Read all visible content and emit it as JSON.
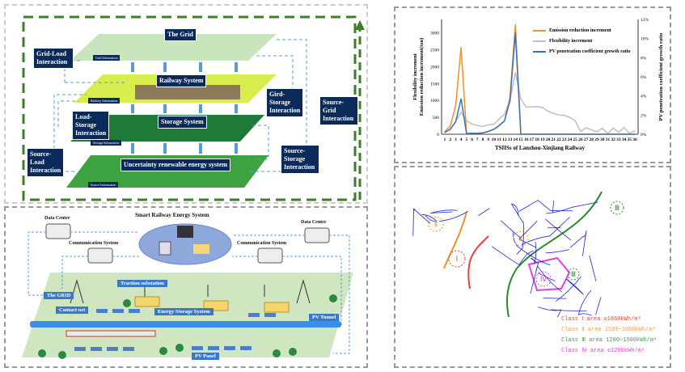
{
  "framework": {
    "layers": [
      "The Grid",
      "Railway System",
      "Storage System",
      "Uncertainty renewable energy system"
    ],
    "info_tags": [
      "Grid Information",
      "Railway Information",
      "Storage Information",
      "Source Information"
    ],
    "interactions": [
      "Grid-Load Interaction",
      "Load-Storage Interaction",
      "Source-Load Interaction",
      "Gird-Storage Interaction",
      "Source-Grid Interaction",
      "Source-Storage Interaction"
    ],
    "colors": {
      "border": "#3e7d2a",
      "label_bg": "#0b2a5c",
      "arrow": "#5b9bd5"
    }
  },
  "smart_system": {
    "title": "Smart Railway Energy System",
    "data_center_left": "Data Center",
    "data_center_right": "Data Center",
    "comm_left": "Communication System",
    "comm_right": "Communication System",
    "labels": [
      "The GRID",
      "Traction substation",
      "Contact net",
      "Energy Storage System",
      "PV Tunnel",
      "PV Panel"
    ]
  },
  "chart_data": {
    "type": "line",
    "categories": [
      "1",
      "2",
      "3",
      "4",
      "5",
      "6",
      "7",
      "8",
      "9",
      "10",
      "11",
      "12",
      "13",
      "14",
      "15",
      "16",
      "17",
      "18",
      "19",
      "20",
      "21",
      "22",
      "23",
      "24",
      "25",
      "26",
      "27",
      "28",
      "29",
      "30",
      "31",
      "32",
      "33",
      "34",
      "35",
      "36"
    ],
    "xlabel": "TSIISs of Lanzhou-Xinjiang Railway",
    "ylabel": "Flexibility increment\nEmission reduction increment(ton)",
    "ylabel_lines": [
      "Flexibility increment",
      "Emission reduction increment(ton)"
    ],
    "y2label": "PV penetration coefficient growth ratio",
    "ylim": [
      0,
      3400
    ],
    "yticks": [
      0,
      500,
      1000,
      1500,
      2000,
      2500,
      3000
    ],
    "y2lim": [
      0,
      12
    ],
    "y2ticks": [
      "0%",
      "2%",
      "4%",
      "6%",
      "8%",
      "10%",
      "12%"
    ],
    "legend": "top-right",
    "series": [
      {
        "name": "Emission reduction increment",
        "axis": "left",
        "color": "#f28e2b",
        "values": [
          80,
          230,
          850,
          2570,
          20,
          30,
          30,
          40,
          80,
          150,
          250,
          400,
          1100,
          3250,
          0,
          0,
          0,
          0,
          0,
          0,
          0,
          0,
          0,
          0,
          0,
          0,
          0,
          0,
          0,
          0,
          0,
          0,
          0,
          0,
          0,
          0
        ]
      },
      {
        "name": "Flexibility increment",
        "axis": "left",
        "color": "#bfbfbf",
        "values": [
          50,
          150,
          380,
          650,
          400,
          300,
          260,
          230,
          280,
          290,
          450,
          600,
          1000,
          1830,
          1050,
          800,
          810,
          820,
          790,
          680,
          620,
          570,
          560,
          500,
          400,
          80,
          190,
          130,
          70,
          180,
          20,
          180,
          60,
          200,
          30,
          100
        ]
      },
      {
        "name": "PV penetration coefficient growth ratio",
        "axis": "right",
        "color": "#3b73b9",
        "values": [
          0.2,
          0.5,
          1.3,
          3.7,
          0.1,
          0.1,
          0.1,
          0.15,
          0.3,
          0.5,
          0.9,
          1.4,
          3.5,
          10.6,
          0,
          0,
          0,
          0,
          0,
          0,
          0,
          0,
          0,
          0,
          0,
          0,
          0,
          0,
          0,
          0,
          0,
          0,
          0,
          0,
          0,
          0
        ]
      }
    ]
  },
  "map": {
    "markers": [
      "Ⅰ",
      "Ⅱ",
      "Ⅱ",
      "Ⅲ",
      "Ⅲ",
      "Ⅳ"
    ],
    "legend": [
      {
        "text": "Class Ⅰ  area   ≥1860kWh/m²",
        "color": "#e8403a"
      },
      {
        "text": "Class Ⅱ  area  1500~1860kWh/m²",
        "color": "#f29b4b"
      },
      {
        "text": "Class Ⅲ  area  1200~1500kWh/m²",
        "color": "#4a9a4a"
      },
      {
        "text": "Class Ⅳ  area  ≤1200kWh/m²",
        "color": "#e040e0"
      }
    ]
  }
}
